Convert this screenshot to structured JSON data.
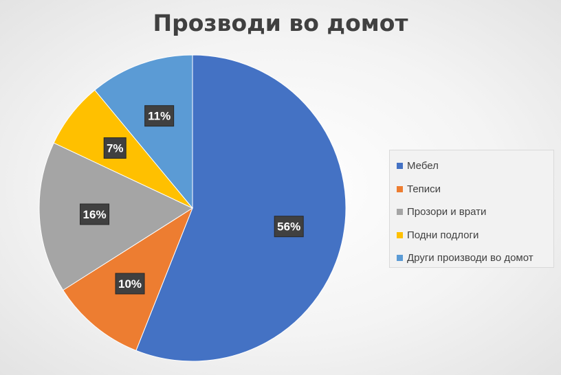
{
  "chart_data": {
    "type": "pie",
    "title": "Прозводи во домот",
    "legend_position": "right",
    "slices": [
      {
        "label": "Мебел",
        "value": 56,
        "display": "56%",
        "color": "#4472c4"
      },
      {
        "label": "Теписи",
        "value": 10,
        "display": "10%",
        "color": "#ed7d31"
      },
      {
        "label": "Прозори и врати",
        "value": 16,
        "display": "16%",
        "color": "#a5a5a5"
      },
      {
        "label": "Подни подлоги",
        "value": 7,
        "display": "7%",
        "color": "#ffc000"
      },
      {
        "label": "Други производи во домот",
        "value": 11,
        "display": "11%",
        "color": "#5b9bd5"
      }
    ]
  }
}
